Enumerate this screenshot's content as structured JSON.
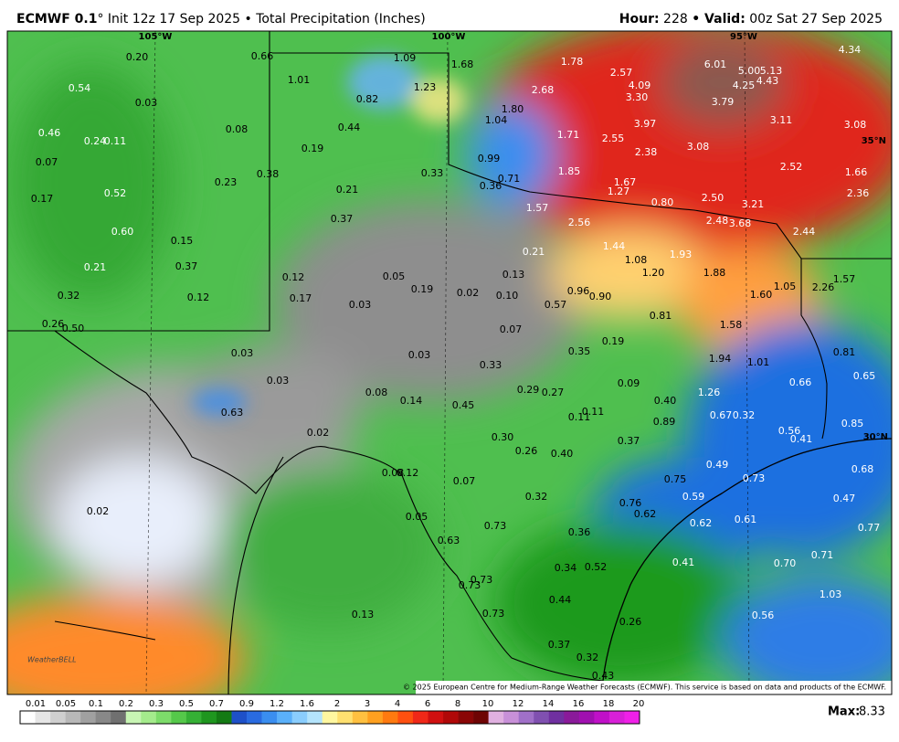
{
  "header": {
    "model": "ECMWF 0.1",
    "run": "° Init 12z 17 Sep 2025 • Total Precipitation (Inches)",
    "hour_label": "Hour:",
    "hour": "228",
    "valid_label": "• Valid:",
    "valid": "00z Sat 27 Sep 2025"
  },
  "map": {
    "grid_labels": [
      "105°W",
      "100°W",
      "95°W",
      "35°N",
      "30°N"
    ],
    "values": [
      "0.20",
      "0.66",
      "1.09",
      "1.68",
      "1.78",
      "2.57",
      "6.01",
      "5.00",
      "5.13",
      "4.34",
      "0.54",
      "1.01",
      "1.23",
      "2.68",
      "4.09",
      "4.25",
      "4.43",
      "0.03",
      "0.82",
      "1.80",
      "3.30",
      "3.79",
      "0.08",
      "0.44",
      "1.04",
      "3.97",
      "3.11",
      "3.08",
      "0.46",
      "0.24",
      "0.11",
      "0.19",
      "1.71",
      "2.55",
      "2.38",
      "3.08",
      "0.07",
      "0.99",
      "0.33",
      "1.85",
      "2.52",
      "1.66",
      "0.38",
      "0.23",
      "0.71",
      "0.36",
      "1.67",
      "1.27",
      "0.21",
      "0.52",
      "0.17",
      "2.36",
      "0.80",
      "2.50",
      "3.21",
      "1.57",
      "0.37",
      "2.56",
      "2.48",
      "3.68",
      "2.44",
      "0.60",
      "0.15",
      "1.44",
      "0.21",
      "1.93",
      "1.08",
      "0.21",
      "0.37",
      "0.05",
      "0.13",
      "0.12",
      "1.20",
      "1.88",
      "1.57",
      "0.19",
      "0.02",
      "0.96",
      "0.90",
      "1.05",
      "2.26",
      "1.60",
      "0.32",
      "0.12",
      "0.17",
      "0.10",
      "0.03",
      "0.57",
      "0.81",
      "0.26",
      "0.50",
      "1.58",
      "0.07",
      "0.19",
      "0.03",
      "0.03",
      "0.35",
      "0.81",
      "1.94",
      "1.01",
      "0.33",
      "0.65",
      "0.03",
      "0.09",
      "0.66",
      "0.29",
      "0.27",
      "0.08",
      "1.26",
      "0.14",
      "0.40",
      "0.45",
      "0.67",
      "0.32",
      "0.63",
      "0.11",
      "0.11",
      "0.89",
      "0.85",
      "0.56",
      "0.41",
      "0.02",
      "0.30",
      "0.37",
      "0.26",
      "0.40",
      "0.49",
      "0.68",
      "0.08",
      "0.12",
      "0.75",
      "0.73",
      "0.07",
      "0.32",
      "0.59",
      "0.47",
      "0.76",
      "0.02",
      "0.62",
      "0.05",
      "0.62",
      "0.61",
      "0.73",
      "0.36",
      "0.77",
      "0.63",
      "0.71",
      "0.41",
      "0.70",
      "0.52",
      "0.34",
      "0.73",
      "0.73",
      "1.03",
      "0.44",
      "0.73",
      "0.13",
      "0.56",
      "0.26",
      "0.37",
      "0.32",
      "0.43"
    ],
    "logo": "WeatherBELL",
    "copyright": "© 2025 European Centre for Medium-Range Weather Forecasts (ECMWF). This service is based on data and products of the ECMWF."
  },
  "legend": {
    "ticks": [
      "0.01",
      "0.05",
      "0.1",
      "0.2",
      "0.3",
      "0.5",
      "0.7",
      "0.9",
      "1.2",
      "1.6",
      "2",
      "3",
      "4",
      "6",
      "8",
      "10",
      "12",
      "14",
      "16",
      "18",
      "20"
    ],
    "max_label": "Max:",
    "max": "8.33"
  }
}
